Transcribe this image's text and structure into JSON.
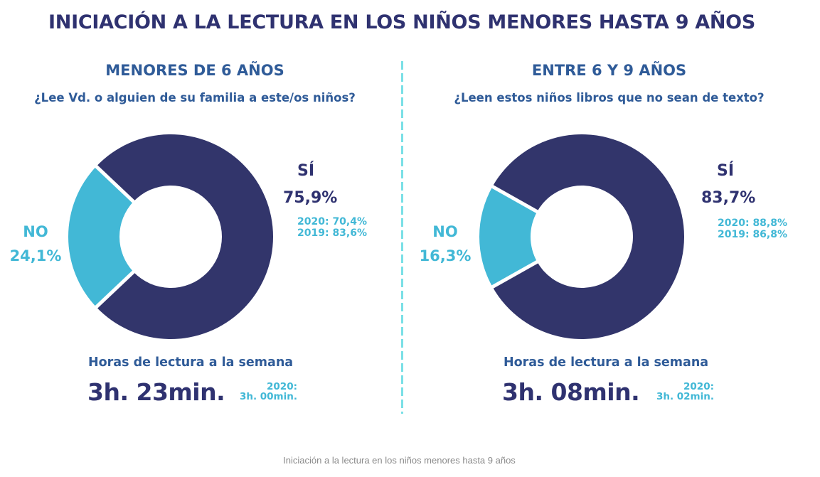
{
  "title": "INICIACIÓN A LA LECTURA EN LOS NIÑOS MENORES HASTA 9 AÑOS",
  "caption": "Iniciación a la lectura en los niños menores hasta 9 años",
  "colors": {
    "yes": "#32356b",
    "no": "#42b8d6",
    "divider": "#7ae0e6"
  },
  "chart_data": [
    {
      "type": "pie",
      "donut": true,
      "title": "MENORES DE 6 AÑOS",
      "question": "¿Lee Vd. o alguien de su familia a este/os niños?",
      "categories": [
        "SÍ",
        "NO"
      ],
      "values": [
        75.9,
        24.1
      ],
      "labels": [
        "75,9%",
        "24,1%"
      ],
      "previous": [
        "2020: 70,4%",
        "2019: 83,6%"
      ],
      "hours_label": "Horas de lectura a la semana",
      "hours_value": "3h. 23min.",
      "hours_prev_year": "2020:",
      "hours_prev_value": "3h. 00min."
    },
    {
      "type": "pie",
      "donut": true,
      "title": "ENTRE 6 Y 9 AÑOS",
      "question": "¿Leen estos niños libros que no sean de texto?",
      "categories": [
        "SÍ",
        "NO"
      ],
      "values": [
        83.7,
        16.3
      ],
      "labels": [
        "83,7%",
        "16,3%"
      ],
      "previous": [
        "2020: 88,8%",
        "2019: 86,8%"
      ],
      "hours_label": "Horas de lectura a la semana",
      "hours_value": "3h. 08min.",
      "hours_prev_year": "2020:",
      "hours_prev_value": "3h. 02min."
    }
  ]
}
